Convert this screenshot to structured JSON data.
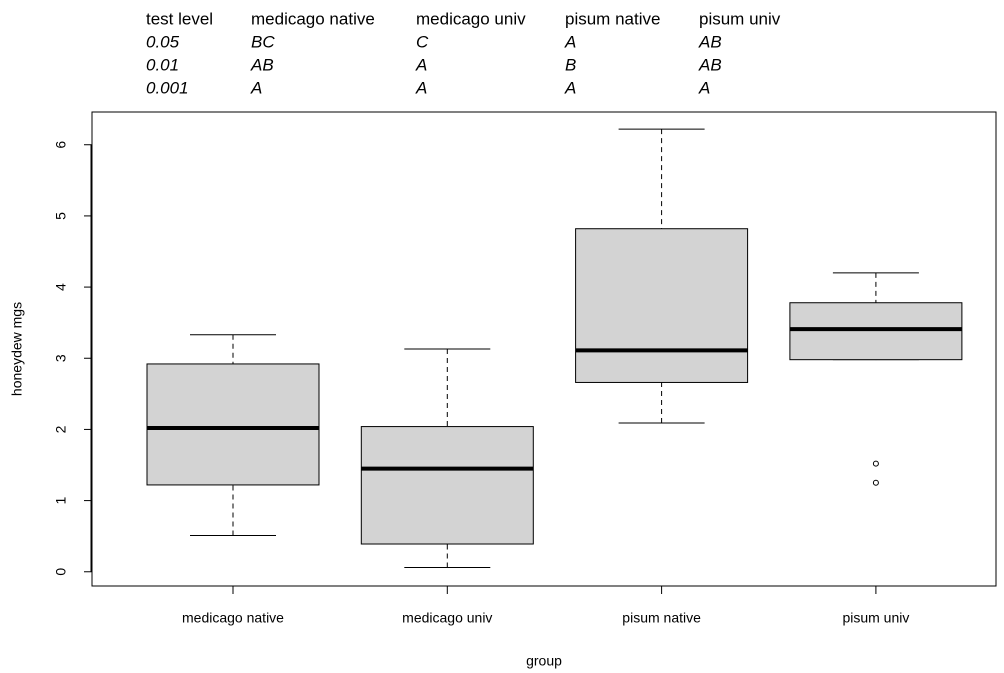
{
  "table": {
    "header": [
      "test level",
      "medicago native",
      "medicago univ",
      "pisum native",
      "pisum univ"
    ],
    "rows": [
      [
        "0.05",
        "BC",
        "C",
        "A",
        "AB"
      ],
      [
        "0.01",
        "AB",
        "A",
        "B",
        "AB"
      ],
      [
        "0.001",
        "A",
        "A",
        "A",
        "A"
      ]
    ]
  },
  "chart_data": {
    "type": "boxplot",
    "x_label": "group",
    "y_label": "honeydew mgs",
    "categories": [
      "medicago native",
      "medicago univ",
      "pisum native",
      "pisum univ"
    ],
    "color": "#d3d3d3",
    "boxes": [
      {
        "low": 0.51,
        "q1": 1.22,
        "median": 2.02,
        "q3": 2.92,
        "high": 3.33,
        "outliers": []
      },
      {
        "low": 0.06,
        "q1": 0.39,
        "median": 1.45,
        "q3": 2.04,
        "high": 3.13,
        "outliers": []
      },
      {
        "low": 2.09,
        "q1": 2.66,
        "median": 3.11,
        "q3": 4.82,
        "high": 6.22,
        "outliers": []
      },
      {
        "low": 2.98,
        "q1": 2.98,
        "median": 3.41,
        "q3": 3.78,
        "high": 4.2,
        "outliers": [
          1.52,
          1.25
        ]
      }
    ],
    "ylim": [
      -0.2,
      6.46
    ],
    "yticks": [
      0,
      1,
      2,
      3,
      4,
      5,
      6
    ]
  }
}
